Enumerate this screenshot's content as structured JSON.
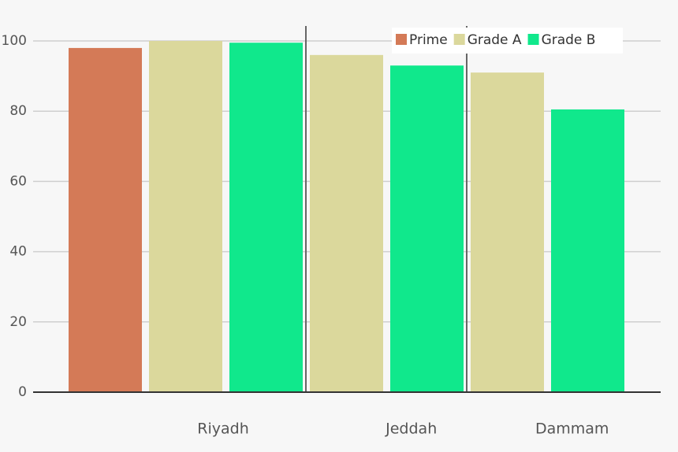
{
  "chart_data": {
    "type": "bar",
    "categories": [
      "Riyadh",
      "Jeddah",
      "Dammam"
    ],
    "series": [
      {
        "name": "Prime",
        "color": "#d47a57",
        "values": [
          98,
          null,
          null
        ]
      },
      {
        "name": "Grade A",
        "color": "#dbd89c",
        "values": [
          100,
          96,
          91
        ]
      },
      {
        "name": "Grade B",
        "color": "#10e88c",
        "values": [
          99.5,
          93,
          80.5
        ]
      }
    ],
    "ylim": [
      0,
      100
    ],
    "yticks": [
      0,
      20,
      40,
      60,
      80,
      100
    ],
    "grid": true,
    "legend": "top-right"
  }
}
